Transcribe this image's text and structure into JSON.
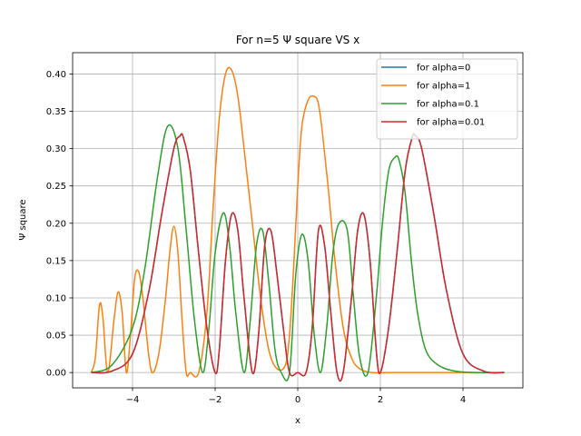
{
  "chart_data": {
    "type": "line",
    "title": "For n=5 Ψ square VS x",
    "xlabel": "x",
    "ylabel": "Ψ square",
    "xlim": [
      -5.45,
      5.45
    ],
    "ylim": [
      -0.0205,
      0.4285
    ],
    "xticks": [
      -4,
      -2,
      0,
      2,
      4
    ],
    "xtick_labels": [
      "−4",
      "−2",
      "0",
      "2",
      "4"
    ],
    "yticks": [
      0.0,
      0.05,
      0.1,
      0.15,
      0.2,
      0.25,
      0.3,
      0.35,
      0.4
    ],
    "ytick_labels": [
      "0.00",
      "0.05",
      "0.10",
      "0.15",
      "0.20",
      "0.25",
      "0.30",
      "0.35",
      "0.40"
    ],
    "grid": true,
    "legend_position": "top-right",
    "series": [
      {
        "name": "for alpha=0",
        "color": "#1f77b4",
        "x": [
          -5.0,
          -4.5,
          -4.0,
          -3.6,
          -3.3,
          -3.0,
          -2.85,
          -2.77,
          -2.6,
          -2.4,
          -2.2,
          -2.0,
          -1.9,
          -1.75,
          -1.6,
          -1.45,
          -1.3,
          -1.1,
          -0.95,
          -0.8,
          -0.65,
          -0.5,
          -0.35,
          -0.2,
          0.0,
          0.2,
          0.35,
          0.5,
          0.65,
          0.8,
          0.95,
          1.1,
          1.3,
          1.45,
          1.6,
          1.75,
          1.9,
          2.0,
          2.2,
          2.4,
          2.6,
          2.77,
          2.85,
          3.0,
          3.3,
          3.6,
          4.0,
          4.5,
          5.0
        ],
        "y": [
          0.0,
          0.002,
          0.025,
          0.11,
          0.21,
          0.3,
          0.317,
          0.315,
          0.27,
          0.16,
          0.06,
          0.0,
          0.03,
          0.15,
          0.212,
          0.19,
          0.1,
          0.0,
          0.05,
          0.17,
          0.19,
          0.13,
          0.06,
          0.0,
          0.0,
          0.0,
          0.06,
          0.19,
          0.17,
          0.08,
          0.0,
          0.0,
          0.1,
          0.19,
          0.212,
          0.15,
          0.03,
          0.0,
          0.06,
          0.16,
          0.27,
          0.315,
          0.317,
          0.3,
          0.21,
          0.11,
          0.025,
          0.002,
          0.0
        ]
      },
      {
        "name": "for alpha=1",
        "color": "#ff7f0e",
        "x": [
          -5.0,
          -4.9,
          -4.8,
          -4.72,
          -4.6,
          -4.45,
          -4.35,
          -4.25,
          -4.15,
          -4.05,
          -3.95,
          -3.85,
          -3.75,
          -3.6,
          -3.5,
          -3.35,
          -3.2,
          -3.1,
          -3.0,
          -2.9,
          -2.8,
          -2.7,
          -2.6,
          -2.4,
          -2.2,
          -2.05,
          -1.9,
          -1.75,
          -1.6,
          -1.45,
          -1.3,
          -1.1,
          -0.9,
          -0.7,
          -0.5,
          -0.3,
          -0.2,
          -0.1,
          0.0,
          0.1,
          0.25,
          0.4,
          0.5,
          0.6,
          0.75,
          0.9,
          1.1,
          1.3,
          1.5,
          1.8,
          2.2,
          3.0,
          4.0,
          5.0
        ],
        "y": [
          0.0,
          0.02,
          0.09,
          0.075,
          0.0,
          0.07,
          0.108,
          0.08,
          0.0,
          0.05,
          0.125,
          0.135,
          0.1,
          0.02,
          0.0,
          0.03,
          0.1,
          0.16,
          0.196,
          0.16,
          0.07,
          0.0,
          0.0,
          0.0,
          0.08,
          0.22,
          0.34,
          0.4,
          0.405,
          0.37,
          0.3,
          0.2,
          0.1,
          0.03,
          0.005,
          0.01,
          0.05,
          0.14,
          0.25,
          0.33,
          0.365,
          0.37,
          0.36,
          0.32,
          0.24,
          0.15,
          0.06,
          0.02,
          0.005,
          0.0,
          0.0,
          0.0,
          0.0,
          0.0
        ]
      },
      {
        "name": "for alpha=0.1",
        "color": "#2ca02c",
        "x": [
          -5.0,
          -4.5,
          -4.0,
          -3.7,
          -3.4,
          -3.15,
          -2.9,
          -2.7,
          -2.5,
          -2.3,
          -2.15,
          -2.0,
          -1.8,
          -1.65,
          -1.5,
          -1.3,
          -1.15,
          -1.0,
          -0.85,
          -0.7,
          -0.55,
          -0.4,
          -0.2,
          -0.05,
          0.1,
          0.25,
          0.4,
          0.55,
          0.7,
          0.85,
          1.0,
          1.2,
          1.35,
          1.5,
          1.7,
          1.9,
          2.05,
          2.2,
          2.35,
          2.45,
          2.6,
          2.75,
          2.9,
          3.1,
          3.4,
          3.8,
          4.3,
          5.0
        ],
        "y": [
          0.0,
          0.01,
          0.06,
          0.14,
          0.26,
          0.33,
          0.3,
          0.19,
          0.07,
          0.0,
          0.06,
          0.16,
          0.214,
          0.17,
          0.08,
          0.0,
          0.07,
          0.17,
          0.19,
          0.12,
          0.03,
          0.0,
          0.0,
          0.13,
          0.185,
          0.15,
          0.05,
          0.0,
          0.06,
          0.16,
          0.2,
          0.19,
          0.1,
          0.02,
          0.0,
          0.1,
          0.2,
          0.27,
          0.288,
          0.285,
          0.24,
          0.15,
          0.08,
          0.03,
          0.01,
          0.002,
          0.0,
          0.0
        ]
      },
      {
        "name": "for alpha=0.01",
        "color": "#d62728",
        "x": [
          -5.0,
          -4.5,
          -4.0,
          -3.6,
          -3.3,
          -3.0,
          -2.85,
          -2.77,
          -2.6,
          -2.4,
          -2.2,
          -2.0,
          -1.9,
          -1.75,
          -1.6,
          -1.45,
          -1.3,
          -1.1,
          -0.95,
          -0.8,
          -0.65,
          -0.5,
          -0.35,
          -0.2,
          0.0,
          0.2,
          0.35,
          0.5,
          0.65,
          0.8,
          0.95,
          1.1,
          1.3,
          1.45,
          1.6,
          1.75,
          1.9,
          2.0,
          2.2,
          2.4,
          2.6,
          2.77,
          2.85,
          3.0,
          3.3,
          3.6,
          4.0,
          4.5,
          5.0
        ],
        "y": [
          0.0,
          0.002,
          0.025,
          0.11,
          0.21,
          0.3,
          0.317,
          0.315,
          0.27,
          0.16,
          0.06,
          0.0,
          0.03,
          0.15,
          0.212,
          0.19,
          0.1,
          0.0,
          0.05,
          0.17,
          0.19,
          0.13,
          0.06,
          0.0,
          0.0,
          0.0,
          0.06,
          0.19,
          0.17,
          0.08,
          0.0,
          0.0,
          0.1,
          0.19,
          0.212,
          0.15,
          0.03,
          0.0,
          0.06,
          0.16,
          0.27,
          0.315,
          0.317,
          0.3,
          0.21,
          0.11,
          0.025,
          0.002,
          0.0
        ]
      }
    ]
  }
}
